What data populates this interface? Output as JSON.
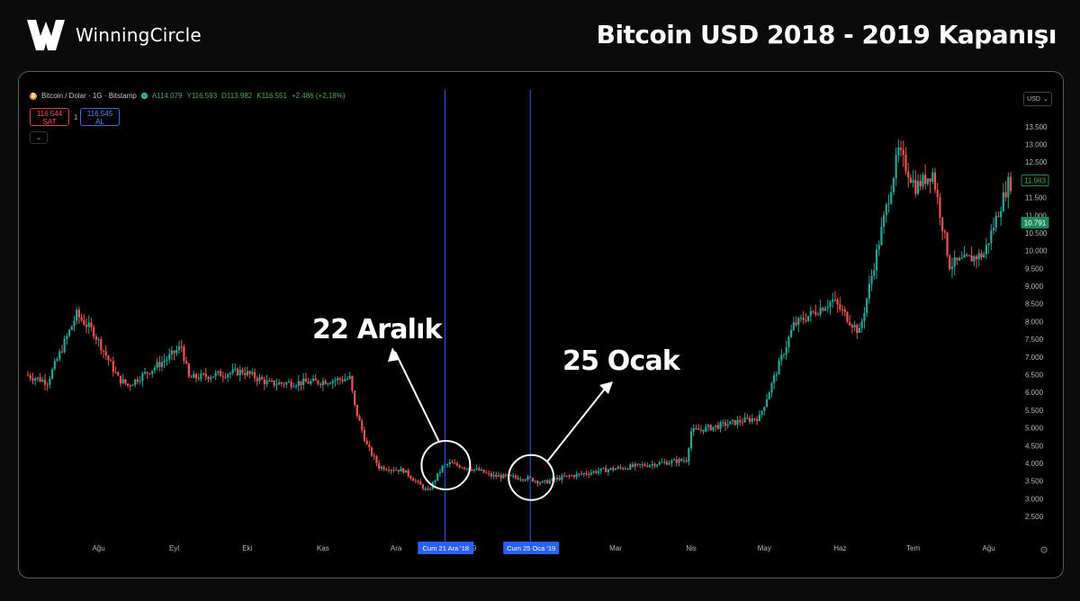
{
  "brand": {
    "name": "WinningCircle",
    "logo_icon": "w-logo-icon"
  },
  "page_title": "Bitcoin USD 2018 - 2019 Kapanışı",
  "legend": {
    "symbol": "Bitcoin / Dolar · 1G · Bitstamp",
    "open": "A114.079",
    "high": "Y116.593",
    "low": "D113.982",
    "close": "K116.551",
    "change": "+2.486 (+2,18%)"
  },
  "trade": {
    "sell_price": "116.544",
    "sell_label": "SAT",
    "sep": "1",
    "buy_price": "116.545",
    "buy_label": "AL"
  },
  "currency": "USD",
  "annotations": {
    "label1": "22 Aralık",
    "label2": "25 Ocak",
    "marker1": "Cum 21 Ara '18",
    "marker2": "Cum 25 Oca '19"
  },
  "colors": {
    "up": "#26a69a",
    "down": "#ef5350",
    "marker_line": "#2962ff",
    "marker_label_bg": "#2962ff",
    "price_tag_green": "#1b8a5a"
  },
  "chart_data": {
    "type": "candlestick",
    "title": "Bitcoin USD 2018 - 2019 Kapanışı",
    "y_ticks": [
      "13.500",
      "13.000",
      "12.500",
      "12.000",
      "11.500",
      "11.000",
      "10.500",
      "10.000",
      "9.500",
      "9.000",
      "8.500",
      "8.000",
      "7.500",
      "7.000",
      "6.500",
      "6.000",
      "5.500",
      "5.000",
      "4.500",
      "4.000",
      "3.500",
      "3.000",
      "2.500"
    ],
    "ylim": [
      2300,
      13900
    ],
    "x_ticks": [
      "Ağu",
      "Eyl",
      "Eki",
      "Kas",
      "Ara",
      "'19",
      "Mar",
      "Nis",
      "May",
      "Haz",
      "Tem",
      "Ağu"
    ],
    "price_tags": [
      {
        "value": 11983,
        "label": "11.983",
        "style": "outline"
      },
      {
        "value": 10791,
        "label": "10.791",
        "style": "filled"
      }
    ],
    "markers": [
      {
        "date": "2018-12-21",
        "label": "Cum 21 Ara '18"
      },
      {
        "date": "2019-01-25",
        "label": "Cum 25 Oca '19"
      }
    ],
    "monthly_path": [
      {
        "month": "2018-07",
        "close": 7700
      },
      {
        "month": "2018-08",
        "close": 7000
      },
      {
        "month": "2018-09",
        "close": 6600
      },
      {
        "month": "2018-10",
        "close": 6300
      },
      {
        "month": "2018-11",
        "close": 4000
      },
      {
        "month": "2018-12",
        "close": 3700
      },
      {
        "month": "2019-01",
        "close": 3450
      },
      {
        "month": "2019-02",
        "close": 3800
      },
      {
        "month": "2019-03",
        "close": 4100
      },
      {
        "month": "2019-04",
        "close": 5300
      },
      {
        "month": "2019-05",
        "close": 8500
      },
      {
        "month": "2019-06",
        "close": 10800
      },
      {
        "month": "2019-07",
        "close": 10000
      },
      {
        "month": "2019-08",
        "close": 11900
      }
    ]
  }
}
